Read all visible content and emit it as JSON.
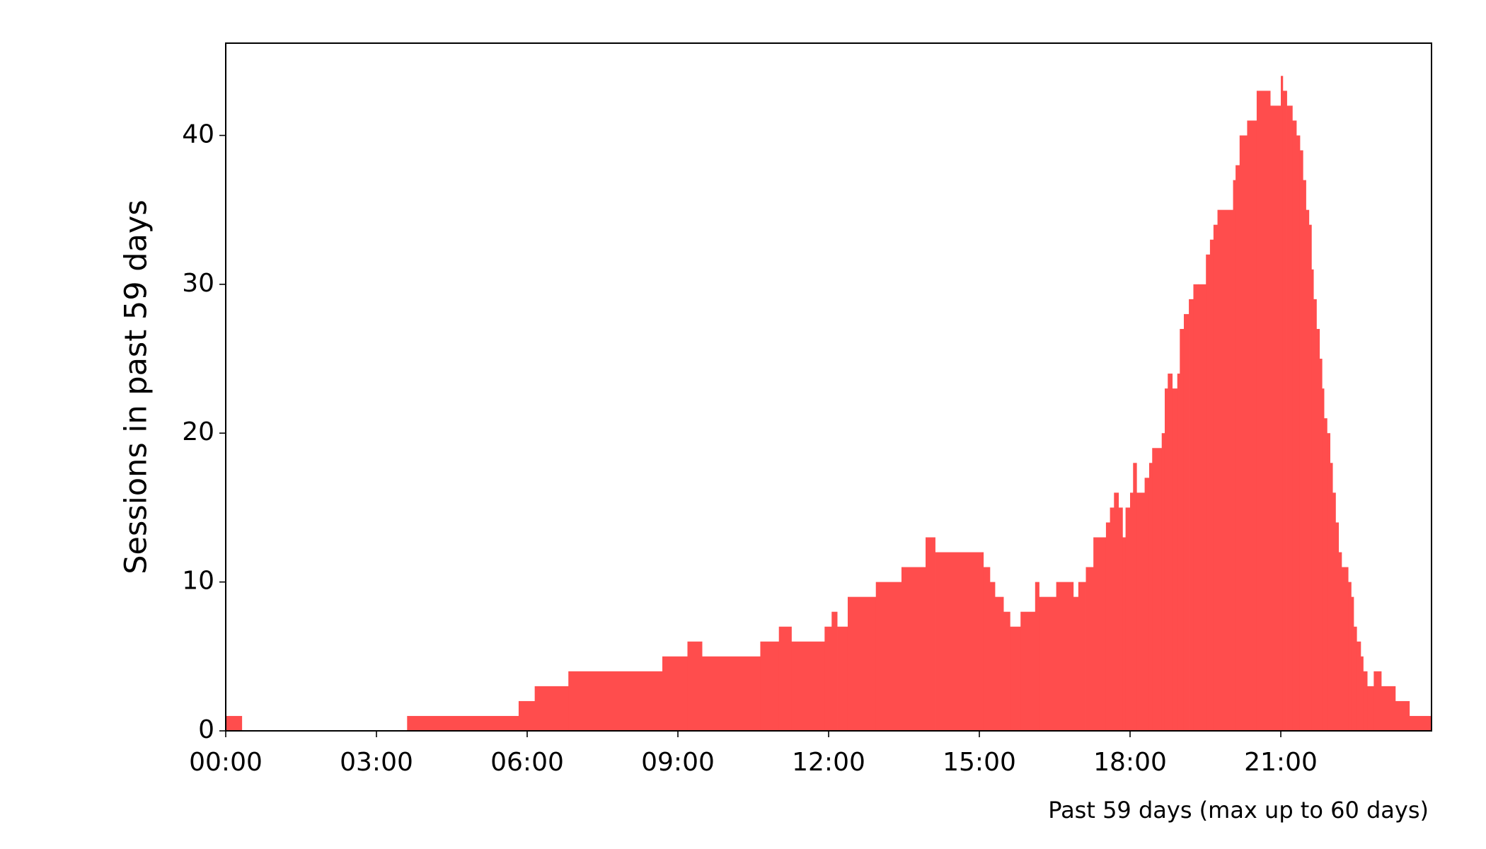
{
  "chart_data": {
    "type": "histogram",
    "ylabel": "Sessions in past 59 days",
    "note": "Past 59 days (max up to 60 days)",
    "color": "#ff4d4d",
    "bins": [
      0,
      0.32,
      3.61,
      5.83,
      6.15,
      6.82,
      8.69,
      9.19,
      9.48,
      10.64,
      11.01,
      11.26,
      11.92,
      12.06,
      12.17,
      12.38,
      12.94,
      13.45,
      13.93,
      14.12,
      15.08,
      15.21,
      15.31,
      15.48,
      15.61,
      15.82,
      16.11,
      16.19,
      16.53,
      16.87,
      16.97,
      17.12,
      17.27,
      17.52,
      17.6,
      17.68,
      17.77,
      17.85,
      17.91,
      18.0,
      18.06,
      18.13,
      18.29,
      18.38,
      18.44,
      18.63,
      18.69,
      18.75,
      18.84,
      18.94,
      18.99,
      19.07,
      19.17,
      19.26,
      19.36,
      19.51,
      19.59,
      19.66,
      19.74,
      20.05,
      20.1,
      20.18,
      20.33,
      20.52,
      20.79,
      21.0,
      21.04,
      21.12,
      21.23,
      21.31,
      21.38,
      21.44,
      21.5,
      21.56,
      21.61,
      21.65,
      21.71,
      21.77,
      21.82,
      21.86,
      21.92,
      21.98,
      22.03,
      22.09,
      22.15,
      22.21,
      22.34,
      22.4,
      22.45,
      22.51,
      22.59,
      22.64,
      22.72,
      22.85,
      23.0,
      23.28,
      23.56,
      24
    ],
    "counts": [
      1,
      0,
      1,
      2,
      3,
      4,
      5,
      6,
      5,
      6,
      7,
      6,
      7,
      8,
      7,
      9,
      10,
      11,
      13,
      12,
      11,
      10,
      9,
      8,
      7,
      8,
      10,
      9,
      10,
      9,
      10,
      11,
      13,
      14,
      15,
      16,
      15,
      13,
      15,
      16,
      18,
      16,
      17,
      18,
      19,
      20,
      23,
      24,
      23,
      24,
      27,
      28,
      29,
      30,
      30,
      32,
      33,
      34,
      35,
      37,
      38,
      40,
      41,
      43,
      42,
      44,
      43,
      42,
      41,
      40,
      39,
      37,
      35,
      34,
      31,
      29,
      27,
      25,
      23,
      21,
      20,
      18,
      16,
      14,
      12,
      11,
      10,
      9,
      7,
      6,
      5,
      4,
      3,
      4,
      3,
      2,
      1
    ],
    "xlim": [
      0,
      24
    ],
    "xticks": [
      {
        "value": 0,
        "label": "00:00"
      },
      {
        "value": 3,
        "label": "03:00"
      },
      {
        "value": 6,
        "label": "06:00"
      },
      {
        "value": 9,
        "label": "09:00"
      },
      {
        "value": 12,
        "label": "12:00"
      },
      {
        "value": 15,
        "label": "15:00"
      },
      {
        "value": 18,
        "label": "18:00"
      },
      {
        "value": 21,
        "label": "21:00"
      }
    ],
    "ylim": [
      0,
      46.2
    ],
    "yticks": [
      0,
      10,
      20,
      30,
      40
    ],
    "grid": false
  }
}
